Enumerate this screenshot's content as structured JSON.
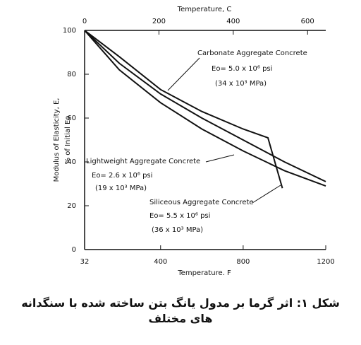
{
  "chart_data": {
    "type": "line",
    "title": "Temperature, C",
    "xlabel": "Temperature. F",
    "ylabel": [
      "Modulus of Elasticity, E,",
      "% of Initial Eo"
    ],
    "xlim": [
      32,
      1200
    ],
    "xticks": [
      32,
      400,
      800,
      1200
    ],
    "x2ticks": [
      0,
      200,
      400,
      600
    ],
    "ylim": [
      0,
      100
    ],
    "yticks": [
      0,
      20,
      40,
      60,
      80,
      100
    ],
    "series": [
      {
        "name": "Carbonate Aggregate Concrete",
        "color": "#111",
        "x": [
          32,
          200,
          400,
          600,
          800,
          1000,
          1200
        ],
        "values": [
          100,
          85,
          71,
          60,
          50,
          40,
          31
        ],
        "notes": [
          "Eo= 5.0 x 10⁶ psi",
          "(34 x 10³ MPa)"
        ]
      },
      {
        "name": "Lightweight Aggregate Concrete",
        "color": "#111",
        "x": [
          32,
          200,
          400,
          600,
          800,
          1000,
          1200
        ],
        "values": [
          100,
          82,
          67,
          55,
          45,
          36,
          29
        ],
        "notes": [
          "Eo= 2.6 x 10⁶ psi",
          "(19 x 10³ MPa)"
        ]
      },
      {
        "name": "Siliceous Aggregate Concrete",
        "color": "#111",
        "x": [
          32,
          200,
          400,
          600,
          800,
          920,
          990
        ],
        "values": [
          100,
          88,
          73,
          63,
          55,
          51,
          28
        ],
        "notes": [
          "Eo= 5.5 x 10⁶ psi",
          "(36 x 10³ MPa)"
        ]
      }
    ]
  },
  "caption": "شکل ۱: اثر گرما بر مدول یانگ بتن ساخته شده با سنگدانه های مختلف"
}
